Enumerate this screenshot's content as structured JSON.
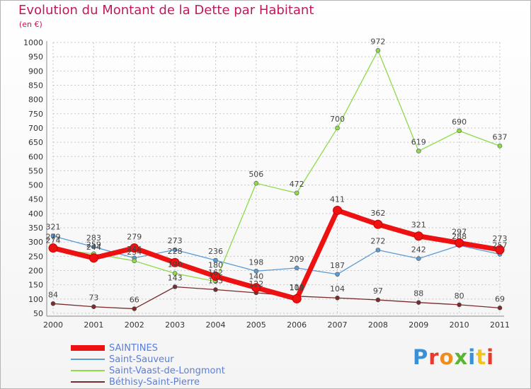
{
  "header": {
    "title": "Evolution du Montant de la Dette par Habitant",
    "unit": "(en €)"
  },
  "logo": {
    "text": "Proxiti",
    "colors": [
      "#3a8fd6",
      "#e8392f",
      "#f08c1a",
      "#5cb531",
      "#3a8fd6",
      "#f0c419",
      "#e8392f"
    ]
  },
  "colors": {
    "title": "#c2185b",
    "axis_text": "#333333",
    "grid": "#c8c8c8",
    "legend_text": "#5b7fd6"
  },
  "chart_data": {
    "type": "line",
    "title": "Evolution du Montant de la Dette par Habitant",
    "ylabel": "(en €)",
    "x": [
      "2000",
      "2001",
      "2002",
      "2003",
      "2004",
      "2005",
      "2006",
      "2007",
      "2008",
      "2009",
      "2010",
      "2011"
    ],
    "ylim": [
      50,
      1000
    ],
    "yticks": [
      50,
      100,
      150,
      200,
      250,
      300,
      350,
      400,
      450,
      500,
      550,
      600,
      650,
      700,
      750,
      800,
      850,
      900,
      950,
      1000
    ],
    "grid": true,
    "legend_position": "bottom-left",
    "series": [
      {
        "name": "SAINTINES",
        "color": "#ee1111",
        "emphasis": true,
        "values": [
          279,
          244,
          279,
          228,
          180,
          140,
          101,
          411,
          362,
          321,
          297,
          273
        ]
      },
      {
        "name": "Saint-Sauveur",
        "color": "#5b9bd5",
        "values": [
          321,
          283,
          244,
          273,
          236,
          198,
          209,
          187,
          272,
          242,
          288,
          257
        ]
      },
      {
        "name": "Saint-Vaast-de-Longmont",
        "color": "#8fd94b",
        "values": [
          274,
          259,
          234,
          190,
          162,
          506,
          472,
          700,
          972,
          619,
          690,
          637
        ]
      },
      {
        "name": "Béthisy-Saint-Pierre",
        "color": "#7a2b2b",
        "values": [
          84,
          73,
          66,
          143,
          133,
          122,
          110,
          104,
          97,
          88,
          80,
          69
        ]
      }
    ]
  }
}
